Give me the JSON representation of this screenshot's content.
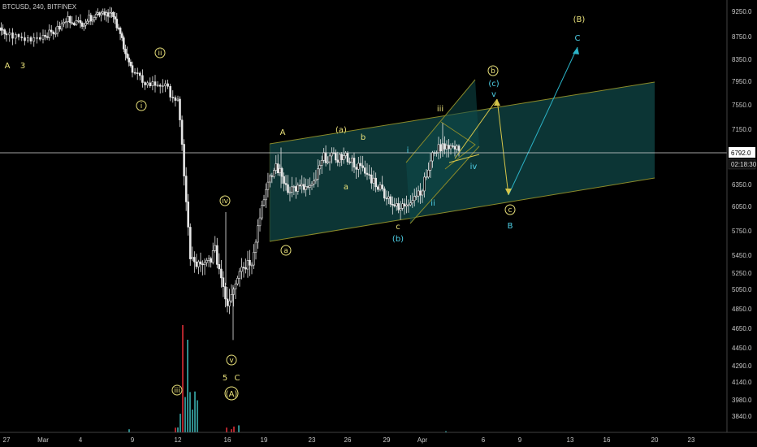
{
  "header": {
    "symbol_label": "BTCUSD, 240, BITFINEX"
  },
  "price_scale": {
    "ticks": [
      "9250.0",
      "8750.0",
      "8350.0",
      "7950.0",
      "7550.0",
      "7150.0",
      "6750.0",
      "6350.0",
      "6050.0",
      "5750.0",
      "5450.0",
      "5250.0",
      "5050.0",
      "4850.0",
      "4650.0",
      "4450.0",
      "4290.0",
      "4140.0",
      "3980.0",
      "3840.0"
    ],
    "current_price": "6792.0",
    "countdown": "02:18:30"
  },
  "time_scale": {
    "ticks": [
      "27",
      "Mar",
      "4",
      "9",
      "12",
      "16",
      "19",
      "23",
      "26",
      "29",
      "Apr",
      "6",
      "9",
      "13",
      "16",
      "20",
      "23"
    ]
  },
  "colors": {
    "background": "#000000",
    "bull_candle": "#e6e6e6",
    "bear_candle": "#e6e6e6",
    "volume_up": "#2e8b8b",
    "volume_down": "#b0242c",
    "channel_fill": "#0d3b3b",
    "channel_line": "#8a8a2a",
    "yellow_label": "#e8e07a",
    "cyan_label": "#4fd1e8",
    "projection": "#d6c64a",
    "projection_cyan": "#2bb3c7"
  },
  "annotations": {
    "a_3_A": "A",
    "a_3_3": "3",
    "wave_i": "i",
    "wave_ii": "ii",
    "wave_iii": "iii",
    "wave_iv": "iv",
    "wave_v": "v",
    "wave_5": "5",
    "wave_C1": "C",
    "wave_A_paren": "(A)",
    "ch_A": "A",
    "ch_a_circled": "a",
    "ch_a_paren": "(a)",
    "ch_b": "b",
    "ch_a": "a",
    "ch_i": "i",
    "ch_c": "c",
    "ch_b_paren": "(b)",
    "ch_ii": "ii",
    "ch_iii": "iii",
    "ch_iv": "iv",
    "ch_v": "v",
    "proj_b_circled": "b",
    "proj_c_paren": "(c)",
    "proj_c_circled": "c",
    "proj_B": "B",
    "proj_B_paren": "(B)",
    "proj_C": "C"
  },
  "chart_data": {
    "type": "candlestick",
    "title": "BTCUSD, 240, BITFINEX",
    "ylim": [
      3700,
      9400
    ],
    "approx_path": [
      {
        "date": "Feb 26",
        "price": 8900
      },
      {
        "date": "Feb 28",
        "price": 8700
      },
      {
        "date": "Mar 2",
        "price": 8850
      },
      {
        "date": "Mar 3",
        "price": 9100
      },
      {
        "date": "Mar 4",
        "price": 9000
      },
      {
        "date": "Mar 6",
        "price": 9250
      },
      {
        "date": "Mar 7",
        "price": 9200
      },
      {
        "date": "Mar 8",
        "price": 8700
      },
      {
        "date": "Mar 9",
        "price": 8100
      },
      {
        "date": "Mar 10",
        "price": 7900
      },
      {
        "date": "Mar 11",
        "price": 7900
      },
      {
        "date": "Mar 12",
        "price": 7600
      },
      {
        "date": "Mar 13",
        "price": 5400
      },
      {
        "date": "Mar 14",
        "price": 5300
      },
      {
        "date": "Mar 15",
        "price": 5500
      },
      {
        "date": "Mar 16",
        "price": 4900
      },
      {
        "date": "Mar 17",
        "price": 5300
      },
      {
        "date": "Mar 18",
        "price": 5400
      },
      {
        "date": "Mar 19",
        "price": 6200
      },
      {
        "date": "Mar 20",
        "price": 6600
      },
      {
        "date": "Mar 21",
        "price": 6300
      },
      {
        "date": "Mar 23",
        "price": 6300
      },
      {
        "date": "Mar 24",
        "price": 6700
      },
      {
        "date": "Mar 26",
        "price": 6700
      },
      {
        "date": "Mar 28",
        "price": 6400
      },
      {
        "date": "Mar 30",
        "price": 6000
      },
      {
        "date": "Apr 1",
        "price": 6300
      },
      {
        "date": "Apr 2",
        "price": 6800
      },
      {
        "date": "Apr 3",
        "price": 6900
      },
      {
        "date": "Apr 4",
        "price": 6800
      }
    ],
    "current_price": 6792.0,
    "volume_note": "volume bars along bottom"
  }
}
